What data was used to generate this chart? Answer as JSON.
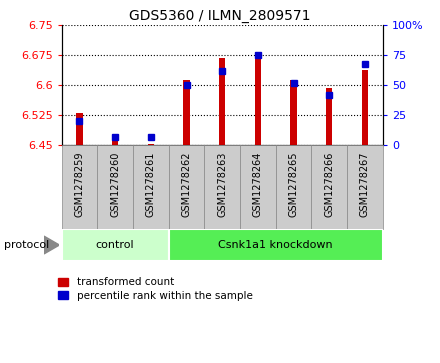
{
  "title": "GDS5360 / ILMN_2809571",
  "samples": [
    "GSM1278259",
    "GSM1278260",
    "GSM1278261",
    "GSM1278262",
    "GSM1278263",
    "GSM1278264",
    "GSM1278265",
    "GSM1278266",
    "GSM1278267"
  ],
  "red_values": [
    6.53,
    6.463,
    6.452,
    6.613,
    6.668,
    6.684,
    6.613,
    6.594,
    6.638
  ],
  "blue_values": [
    20,
    7,
    7,
    50,
    62,
    75,
    52,
    42,
    68
  ],
  "ylim_left": [
    6.45,
    6.75
  ],
  "ylim_right": [
    0,
    100
  ],
  "yticks_left": [
    6.45,
    6.525,
    6.6,
    6.675,
    6.75
  ],
  "yticks_right": [
    0,
    25,
    50,
    75,
    100
  ],
  "bar_bottom": 6.45,
  "protocol_groups": [
    {
      "label": "control",
      "start": 0,
      "end": 3,
      "color": "#ccffcc"
    },
    {
      "label": "Csnk1a1 knockdown",
      "start": 3,
      "end": 9,
      "color": "#55ee55"
    }
  ],
  "legend_items": [
    {
      "color": "#cc0000",
      "label": "transformed count"
    },
    {
      "color": "#0000cc",
      "label": "percentile rank within the sample"
    }
  ],
  "protocol_label": "protocol",
  "bar_color": "#cc0000",
  "blue_color": "#0000cc",
  "cell_color": "#cccccc",
  "cell_border": "#888888",
  "bar_width": 0.18,
  "blue_marker_size": 5,
  "tick_label_fontsize": 7,
  "title_fontsize": 10
}
